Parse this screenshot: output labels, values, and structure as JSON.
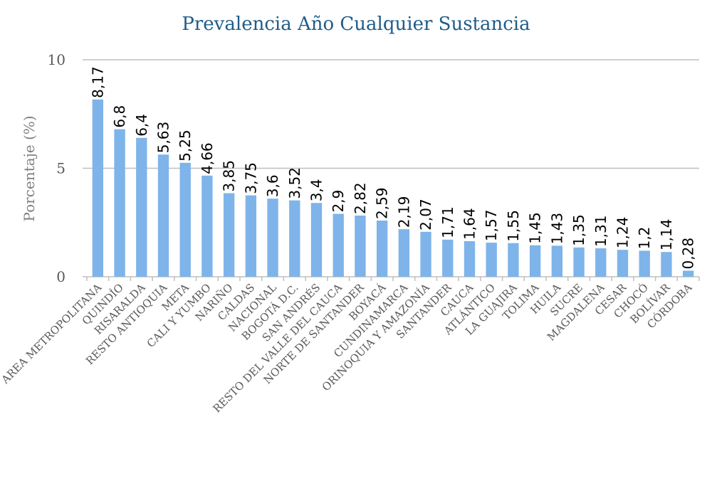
{
  "chart_data": {
    "type": "bar",
    "title": "Prevalencia Año Cualquier Sustancia",
    "ylabel": "Porcentaje (%)",
    "xlabel": "",
    "ylim": [
      0,
      10
    ],
    "yticks": [
      "0",
      "5",
      "10"
    ],
    "grid": true,
    "legend": "none",
    "bar_color": "#7eb4ea",
    "categories": [
      "AREA METROPOLITANA",
      "QUINDÍO",
      "RISARALDA",
      "RESTO ANTIOQUIA",
      "META",
      "CALI Y YUMBO",
      "NARIÑO",
      "CALDAS",
      "NACIONAL",
      "BOGOTÁ D.C.",
      "SAN ANDRÉS",
      "RESTO DEL VALLE DEL CAUCA",
      "NORTE DE SANTANDER",
      "BOYACÁ",
      "CUNDINAMARCA",
      "ORINOQUIA Y AMAZONÍA",
      "SANTANDER",
      "CAUCA",
      "ATLÁNTICO",
      "LA GUAJIRA",
      "TOLIMA",
      "HUILA",
      "SUCRE",
      "MAGDALENA",
      "CESAR",
      "CHOCÓ",
      "BOLÍVAR",
      "CÓRDOBA"
    ],
    "values": [
      8.17,
      6.8,
      6.4,
      5.63,
      5.25,
      4.66,
      3.85,
      3.75,
      3.6,
      3.52,
      3.4,
      2.9,
      2.82,
      2.59,
      2.19,
      2.07,
      1.71,
      1.64,
      1.57,
      1.55,
      1.45,
      1.43,
      1.35,
      1.31,
      1.24,
      1.2,
      1.14,
      0.28
    ],
    "value_labels": [
      "8,17",
      "6,8",
      "6,4",
      "5,63",
      "5,25",
      "4,66",
      "3,85",
      "3,75",
      "3,6",
      "3,52",
      "3,4",
      "2,9",
      "2,82",
      "2,59",
      "2,19",
      "2,07",
      "1,71",
      "1,64",
      "1,57",
      "1,55",
      "1,45",
      "1,43",
      "1,35",
      "1,31",
      "1,24",
      "1,2",
      "1,14",
      "0,28"
    ]
  }
}
